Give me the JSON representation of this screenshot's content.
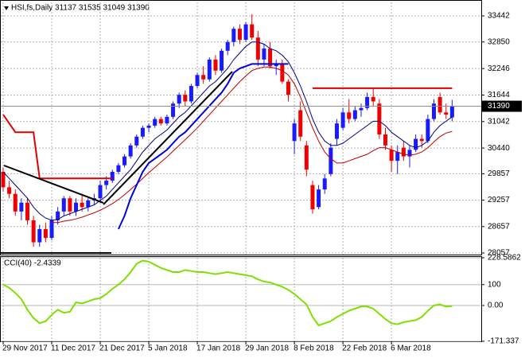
{
  "chart_data": [
    {
      "type": "candlestick",
      "title": "HSI,fs,Daily  31137 31535 31049 31390",
      "categories": [
        "29 Nov 2017",
        null,
        null,
        null,
        null,
        null,
        null,
        null,
        "11 Dec 2017",
        null,
        null,
        null,
        null,
        null,
        null,
        null,
        "21 Dec 2017",
        null,
        null,
        null,
        null,
        null,
        null,
        null,
        "5 Jan 2018",
        null,
        null,
        null,
        null,
        null,
        null,
        null,
        "17 Jan 2018",
        null,
        null,
        null,
        null,
        null,
        null,
        null,
        "29 Jan 2018",
        null,
        null,
        null,
        null,
        null,
        null,
        null,
        "8 Feb 2018",
        null,
        null,
        null,
        null,
        null,
        null,
        null,
        "22 Feb 2018",
        null,
        null,
        null,
        null,
        null,
        null,
        null,
        "6 Mar 2018",
        null,
        null,
        null,
        null,
        null,
        null,
        null,
        null,
        null,
        null
      ],
      "open": [
        29900,
        29550,
        29400,
        29000,
        29200,
        28800,
        28300,
        28600,
        28400,
        28800,
        29000,
        29300,
        29000,
        29200,
        29100,
        29250,
        29300,
        29600,
        29700,
        29900,
        30050,
        30250,
        30500,
        30700,
        30900,
        30950,
        31100,
        31000,
        31150,
        31450,
        31650,
        31500,
        31850,
        32100,
        32000,
        32450,
        32200,
        32650,
        32850,
        33150,
        32900,
        33250,
        32950,
        32450,
        32700,
        32300,
        32350,
        31950,
        30600,
        31300,
        30500,
        29600,
        29100,
        29500,
        29850,
        30650,
        30900,
        31250,
        31100,
        31300,
        31350,
        31600,
        31450,
        30750,
        30400,
        30150,
        30450,
        30250,
        30400,
        30650,
        30600,
        31100,
        31600,
        31250,
        31137
      ],
      "high": [
        30000,
        29700,
        29500,
        29300,
        29300,
        28900,
        28700,
        28750,
        28900,
        29100,
        29350,
        29350,
        29300,
        29400,
        29300,
        29400,
        29700,
        29800,
        29950,
        30100,
        30300,
        30550,
        30750,
        30950,
        31000,
        31150,
        31150,
        31200,
        31500,
        31700,
        31750,
        31900,
        32150,
        32300,
        32500,
        32550,
        32700,
        32900,
        33200,
        33250,
        33300,
        33480,
        33100,
        32800,
        32850,
        32450,
        32450,
        32000,
        31100,
        31500,
        30600,
        29700,
        29600,
        29850,
        30550,
        31100,
        31350,
        31550,
        31400,
        31450,
        31700,
        31800,
        31550,
        30900,
        30500,
        30500,
        30600,
        30500,
        30750,
        30750,
        31200,
        31550,
        31700,
        31450,
        31535
      ],
      "low": [
        29450,
        29300,
        28900,
        28800,
        28700,
        28200,
        28200,
        28300,
        28350,
        28700,
        28900,
        28900,
        28900,
        29000,
        29000,
        29150,
        29200,
        29500,
        29650,
        29850,
        30000,
        30200,
        30450,
        30650,
        30800,
        30900,
        30950,
        30950,
        31100,
        31350,
        31400,
        31450,
        31800,
        31900,
        31950,
        32100,
        32150,
        32550,
        32750,
        32800,
        32850,
        32900,
        32300,
        32300,
        32250,
        32100,
        31900,
        31500,
        30300,
        30600,
        29800,
        28950,
        29050,
        29400,
        29800,
        30500,
        30850,
        31000,
        31050,
        31150,
        31300,
        31400,
        30650,
        30400,
        29900,
        29850,
        30150,
        30000,
        30350,
        30450,
        30550,
        31050,
        31200,
        31100,
        31049
      ],
      "close": [
        29550,
        29400,
        29000,
        29200,
        28800,
        28300,
        28600,
        28400,
        28800,
        29000,
        29300,
        29000,
        29200,
        29100,
        29250,
        29300,
        29600,
        29700,
        29900,
        30050,
        30250,
        30500,
        30700,
        30900,
        30950,
        31100,
        31000,
        31150,
        31450,
        31650,
        31500,
        31850,
        32100,
        32000,
        32450,
        32200,
        32650,
        32850,
        33150,
        32900,
        33250,
        32950,
        32450,
        32700,
        32300,
        32350,
        31950,
        31650,
        31000,
        30700,
        29950,
        29050,
        29500,
        29750,
        30450,
        31000,
        31250,
        31100,
        31300,
        31350,
        31600,
        31500,
        30750,
        30500,
        30150,
        30350,
        30250,
        30400,
        30650,
        30600,
        31100,
        31450,
        31250,
        31200,
        31390
      ],
      "up_color": "#1a1aff",
      "down_color": "#f00000",
      "series": [
        {
          "color": "#00008b",
          "width": 1,
          "values": [
            29900,
            29750,
            29600,
            29450,
            29300,
            29100,
            28950,
            28850,
            28800,
            28820,
            28900,
            28950,
            29000,
            29050,
            29100,
            29150,
            29250,
            29350,
            29500,
            29650,
            29800,
            29950,
            30150,
            30350,
            30500,
            30650,
            30750,
            30850,
            31000,
            31150,
            31250,
            31400,
            31550,
            31700,
            31850,
            31950,
            32100,
            32250,
            32450,
            32600,
            32750,
            32850,
            32850,
            32800,
            32700,
            32650,
            32550,
            32400,
            32150,
            31850,
            31500,
            31100,
            30800,
            30600,
            30500,
            30500,
            30550,
            30650,
            30750,
            30850,
            30950,
            31050,
            31050,
            30950,
            30800,
            30700,
            30600,
            30500,
            30450,
            30500,
            30600,
            30800,
            30950,
            31050,
            31150
          ]
        },
        {
          "color": "#c00000",
          "width": 1,
          "values": [
            null,
            null,
            null,
            null,
            null,
            null,
            null,
            null,
            28750,
            28750,
            28780,
            28800,
            28830,
            28870,
            28920,
            28970,
            29030,
            29100,
            29180,
            29270,
            29380,
            29500,
            29620,
            29750,
            29880,
            30000,
            30120,
            30240,
            30370,
            30500,
            30630,
            30760,
            30900,
            31050,
            31200,
            31350,
            31500,
            31650,
            31800,
            31950,
            32080,
            32200,
            32250,
            32280,
            32280,
            32250,
            32200,
            32100,
            31900,
            31600,
            31250,
            30900,
            30600,
            30350,
            30200,
            30100,
            30100,
            30150,
            30200,
            30250,
            30300,
            30380,
            30450,
            30450,
            30400,
            30350,
            30300,
            30280,
            30300,
            30350,
            30450,
            30580,
            30700,
            30780,
            30820
          ]
        },
        {
          "color": "#e00000",
          "width": 2,
          "values": [
            31200,
            31000,
            30800,
            30800,
            30800,
            30800,
            29750,
            29750,
            29750,
            29750,
            29750,
            29750,
            29750,
            29750,
            29750,
            29750,
            29750,
            29750,
            29750,
            null,
            null,
            null,
            null,
            null,
            null,
            null,
            null,
            null,
            null,
            null,
            null,
            null,
            null,
            null,
            null,
            null,
            null,
            null,
            null,
            null,
            null,
            null,
            null,
            null,
            null,
            null,
            null,
            null,
            null,
            null,
            null,
            31800,
            31800,
            31800,
            31800,
            31800,
            31800,
            31800,
            31800,
            31800,
            31800,
            31800,
            31800,
            31800,
            31800,
            31800,
            31800,
            31800,
            31800,
            31800,
            31800,
            31800,
            31800,
            31800,
            31800
          ]
        },
        {
          "color": "#0000e0",
          "width": 2,
          "values": [
            null,
            null,
            null,
            null,
            null,
            null,
            null,
            null,
            null,
            null,
            null,
            null,
            null,
            null,
            null,
            null,
            null,
            null,
            null,
            28600,
            28900,
            29300,
            29600,
            29900,
            30100,
            30200,
            30300,
            30400,
            30550,
            30700,
            30800,
            30950,
            31100,
            31250,
            31400,
            31550,
            31700,
            31900,
            32150,
            32250,
            32300,
            32350,
            32350,
            32350,
            32350,
            32350,
            32350,
            32350,
            null,
            null,
            null,
            null,
            null,
            null,
            null,
            null,
            null,
            null,
            null,
            null,
            null,
            null,
            null,
            null,
            null,
            null,
            null,
            null,
            null,
            null,
            null,
            null,
            null,
            null,
            null
          ]
        }
      ],
      "last_price": 31390,
      "ylim": [
        28021,
        33749
      ],
      "yticks": [
        33442,
        32850,
        32246,
        31644,
        31042,
        30440,
        29857,
        29257,
        28657,
        28057
      ],
      "grid": true
    },
    {
      "type": "line",
      "title": "CCI(40) -2.4339",
      "color": "#7fe000",
      "values": [
        100,
        85,
        60,
        30,
        -20,
        -60,
        -85,
        -75,
        -45,
        -20,
        -35,
        -30,
        15,
        10,
        20,
        30,
        35,
        55,
        80,
        100,
        125,
        160,
        200,
        215,
        210,
        195,
        180,
        170,
        160,
        160,
        170,
        165,
        160,
        160,
        155,
        150,
        155,
        160,
        155,
        150,
        145,
        140,
        125,
        115,
        110,
        100,
        90,
        75,
        55,
        30,
        5,
        -55,
        -95,
        -85,
        -75,
        -55,
        -40,
        -25,
        -15,
        -5,
        -5,
        -15,
        -40,
        -65,
        -85,
        -90,
        -80,
        -75,
        -70,
        -55,
        -25,
        0,
        5,
        -5,
        -2.4339
      ],
      "ylim": [
        -171.337,
        228.5862
      ],
      "yticks": [
        228.5862,
        100,
        {
          "value": 0,
          "label": "0.00"
        },
        -171.337
      ],
      "grid": true
    }
  ]
}
